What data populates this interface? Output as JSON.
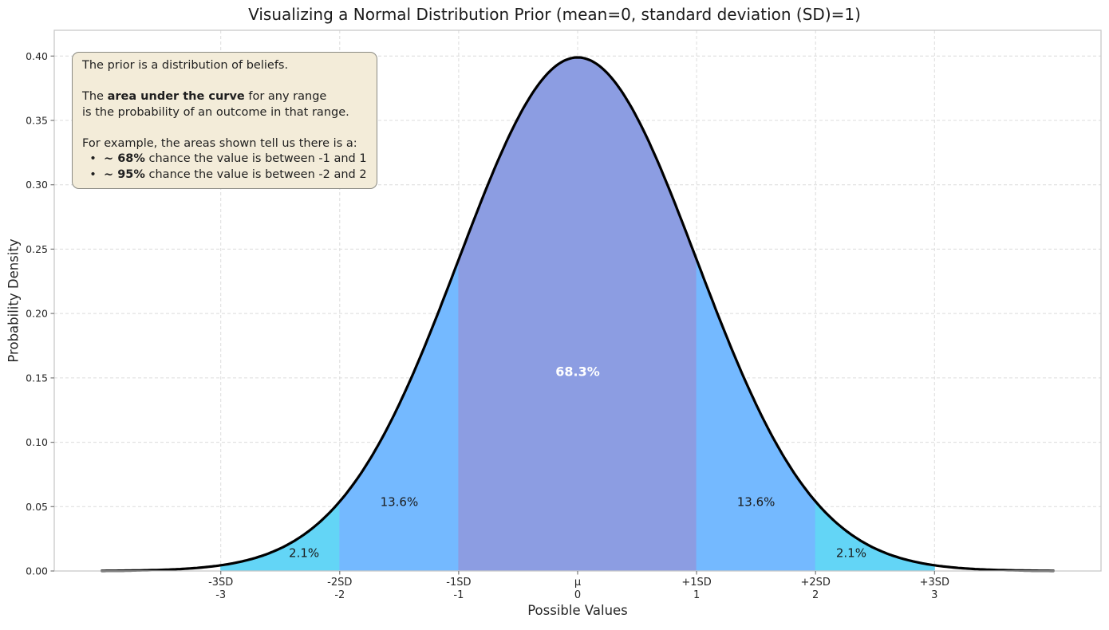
{
  "title": "Visualizing a Normal Distribution Prior (mean=0, standard deviation (SD)=1)",
  "annotation": {
    "bg": "#f3ecd9",
    "border": "#8a8a83",
    "lines": [
      [
        {
          "t": "The prior is a distribution of beliefs.",
          "b": false
        }
      ],
      [],
      [
        {
          "t": "The ",
          "b": false
        },
        {
          "t": "area under the curve",
          "b": true
        },
        {
          "t": " for any range",
          "b": false
        }
      ],
      [
        {
          "t": "is the probability of an outcome in that range.",
          "b": false
        }
      ],
      [],
      [
        {
          "t": "For example, the areas shown tell us there is a:",
          "b": false
        }
      ],
      [
        {
          "t": "  •  ",
          "b": false
        },
        {
          "t": "~ 68%",
          "b": true
        },
        {
          "t": " chance the value is between -1 and 1",
          "b": false
        }
      ],
      [
        {
          "t": "  •  ",
          "b": false
        },
        {
          "t": "~ 95%",
          "b": true
        },
        {
          "t": " chance the value is between -2 and 2",
          "b": false
        }
      ]
    ]
  },
  "chart_data": {
    "type": "area",
    "title": "Visualizing a Normal Distribution Prior (mean=0, standard deviation (SD)=1)",
    "xlabel": "Possible Values",
    "ylabel": "Probability Density",
    "distribution": {
      "name": "normal",
      "mean": 0,
      "sd": 1,
      "peak_density": 0.3989
    },
    "xlim": [
      -4.4,
      4.4
    ],
    "ylim": [
      0,
      0.42
    ],
    "curve_range": [
      -4,
      4
    ],
    "curve_color": "#000000",
    "curve_width": 3.2,
    "grid": {
      "on": true,
      "dashed": true,
      "color": "#dcdcdc"
    },
    "spine_color": "#c8c8c8",
    "x_ticks": [
      {
        "sd": "-3SD",
        "value": "-3",
        "x": -3
      },
      {
        "sd": "-2SD",
        "value": "-2",
        "x": -2
      },
      {
        "sd": "-1SD",
        "value": "-1",
        "x": -1
      },
      {
        "sd": "μ",
        "value": "0",
        "x": 0
      },
      {
        "sd": "+1SD",
        "value": "1",
        "x": 1
      },
      {
        "sd": "+2SD",
        "value": "2",
        "x": 2
      },
      {
        "sd": "+3SD",
        "value": "3",
        "x": 3
      }
    ],
    "y_ticks": [
      {
        "label": "0.00",
        "v": 0.0
      },
      {
        "label": "0.05",
        "v": 0.05
      },
      {
        "label": "0.10",
        "v": 0.1
      },
      {
        "label": "0.15",
        "v": 0.15
      },
      {
        "label": "0.20",
        "v": 0.2
      },
      {
        "label": "0.25",
        "v": 0.25
      },
      {
        "label": "0.30",
        "v": 0.3
      },
      {
        "label": "0.35",
        "v": 0.35
      },
      {
        "label": "0.40",
        "v": 0.4
      }
    ],
    "regions": [
      {
        "from": -3,
        "to": -2,
        "color": "#63d5f6",
        "label": "2.1%",
        "label_x": -2.3,
        "label_y": 0.014,
        "label_color": "#1a1a1a",
        "label_bold": false,
        "label_size": 15
      },
      {
        "from": -2,
        "to": -1,
        "color": "#74b9ff",
        "label": "13.6%",
        "label_x": -1.5,
        "label_y": 0.0536,
        "label_color": "#1a1a1a",
        "label_bold": false,
        "label_size": 15
      },
      {
        "from": -1,
        "to": 1,
        "color": "#8c9de2",
        "label": "68.3%",
        "label_x": 0.0,
        "label_y": 0.155,
        "label_color": "#ffffff",
        "label_bold": true,
        "label_size": 16
      },
      {
        "from": 1,
        "to": 2,
        "color": "#74b9ff",
        "label": "13.6%",
        "label_x": 1.5,
        "label_y": 0.0536,
        "label_color": "#1a1a1a",
        "label_bold": false,
        "label_size": 15
      },
      {
        "from": 2,
        "to": 3,
        "color": "#63d5f6",
        "label": "2.1%",
        "label_x": 2.3,
        "label_y": 0.014,
        "label_color": "#1a1a1a",
        "label_bold": false,
        "label_size": 15
      }
    ]
  }
}
